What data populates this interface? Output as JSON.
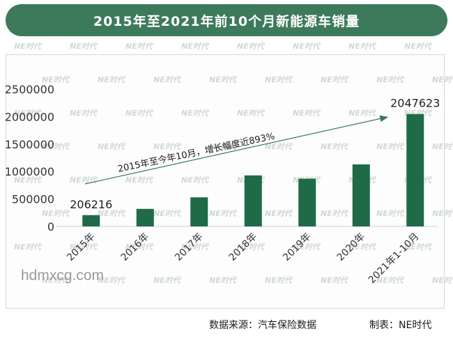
{
  "header": {
    "title": "2015年至2021年前10个月新能源车销量"
  },
  "chart_data": {
    "type": "bar",
    "title": "2015年至2021年前10个月新能源车销量",
    "categories": [
      "2015年",
      "2016年",
      "2017年",
      "2018年",
      "2019年",
      "2020年",
      "2021年1-10月"
    ],
    "values": [
      206216,
      320000,
      530000,
      930000,
      870000,
      1130000,
      2047623
    ],
    "data_labels": {
      "2015年": "206216",
      "2021年1-10月": "2047623"
    },
    "ylim": [
      0,
      2500000
    ],
    "yticks": [
      "0",
      "500000",
      "1000000",
      "1500000",
      "2000000",
      "2500000"
    ],
    "xlabel": "",
    "ylabel": "",
    "bar_color": "#1f6b47",
    "annotation": "2015年至今年10月，增长幅度近893%"
  },
  "watermark": {
    "site": "hdmxcg.com",
    "logo_text": "NE时代"
  },
  "footer": {
    "source": "数据来源：汽车保险数据",
    "maker": "制表：NE时代"
  }
}
